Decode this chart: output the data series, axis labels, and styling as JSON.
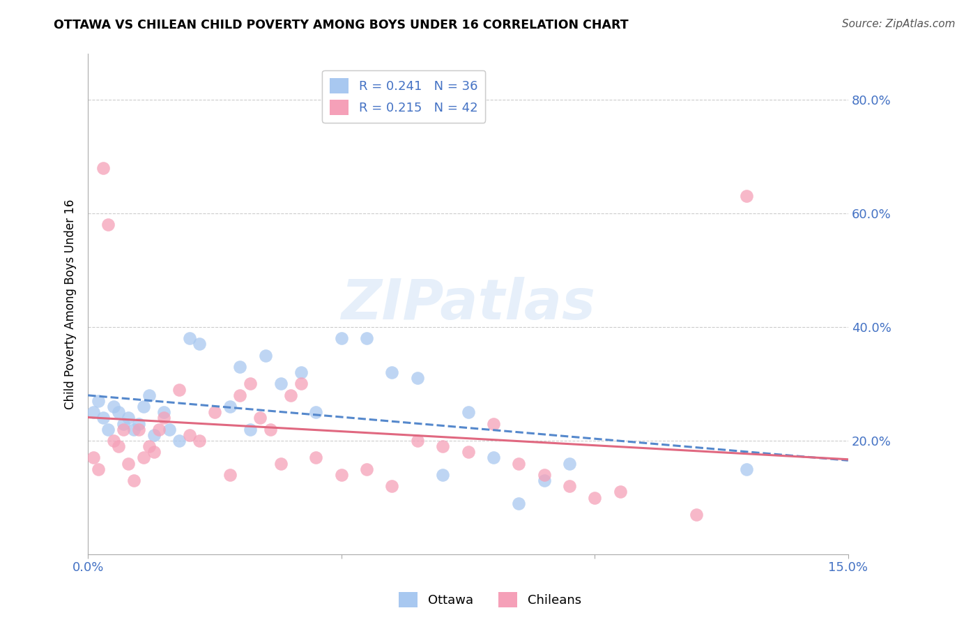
{
  "title": "OTTAWA VS CHILEAN CHILD POVERTY AMONG BOYS UNDER 16 CORRELATION CHART",
  "source": "Source: ZipAtlas.com",
  "ylabel": "Child Poverty Among Boys Under 16",
  "ytick_labels": [
    "20.0%",
    "40.0%",
    "60.0%",
    "80.0%"
  ],
  "ytick_vals": [
    0.2,
    0.4,
    0.6,
    0.8
  ],
  "xtick_vals": [
    0.0,
    0.05,
    0.1,
    0.15
  ],
  "xtick_labels_show": [
    "0.0%",
    "",
    "",
    "15.0%"
  ],
  "xlim": [
    0.0,
    0.15
  ],
  "ylim": [
    0.0,
    0.88
  ],
  "legend_label_R1": "R = 0.241",
  "legend_label_N1": "N = 36",
  "legend_label_R2": "R = 0.215",
  "legend_label_N2": "N = 42",
  "legend_label_ottawa": "Ottawa",
  "legend_label_chileans": "Chileans",
  "watermark": "ZIPatlas",
  "ottawa_color": "#a8c8f0",
  "chilean_color": "#f5a0b8",
  "ottawa_line_color": "#5588cc",
  "chilean_line_color": "#e06880",
  "background_color": "#ffffff",
  "grid_color": "#cccccc",
  "ottawa_x": [
    0.001,
    0.002,
    0.003,
    0.004,
    0.005,
    0.006,
    0.007,
    0.008,
    0.009,
    0.01,
    0.011,
    0.012,
    0.013,
    0.015,
    0.016,
    0.018,
    0.02,
    0.022,
    0.028,
    0.03,
    0.032,
    0.035,
    0.038,
    0.042,
    0.045,
    0.05,
    0.055,
    0.06,
    0.065,
    0.07,
    0.075,
    0.08,
    0.085,
    0.09,
    0.095,
    0.13
  ],
  "ottawa_y": [
    0.25,
    0.27,
    0.24,
    0.22,
    0.26,
    0.25,
    0.23,
    0.24,
    0.22,
    0.23,
    0.26,
    0.28,
    0.21,
    0.25,
    0.22,
    0.2,
    0.38,
    0.37,
    0.26,
    0.33,
    0.22,
    0.35,
    0.3,
    0.32,
    0.25,
    0.38,
    0.38,
    0.32,
    0.31,
    0.14,
    0.25,
    0.17,
    0.09,
    0.13,
    0.16,
    0.15
  ],
  "chilean_x": [
    0.001,
    0.002,
    0.003,
    0.004,
    0.005,
    0.006,
    0.007,
    0.008,
    0.009,
    0.01,
    0.011,
    0.012,
    0.013,
    0.014,
    0.015,
    0.018,
    0.02,
    0.022,
    0.025,
    0.028,
    0.03,
    0.032,
    0.034,
    0.036,
    0.038,
    0.04,
    0.042,
    0.045,
    0.05,
    0.055,
    0.06,
    0.065,
    0.07,
    0.075,
    0.08,
    0.085,
    0.09,
    0.095,
    0.1,
    0.105,
    0.12,
    0.13
  ],
  "chilean_y": [
    0.17,
    0.15,
    0.68,
    0.58,
    0.2,
    0.19,
    0.22,
    0.16,
    0.13,
    0.22,
    0.17,
    0.19,
    0.18,
    0.22,
    0.24,
    0.29,
    0.21,
    0.2,
    0.25,
    0.14,
    0.28,
    0.3,
    0.24,
    0.22,
    0.16,
    0.28,
    0.3,
    0.17,
    0.14,
    0.15,
    0.12,
    0.2,
    0.19,
    0.18,
    0.23,
    0.16,
    0.14,
    0.12,
    0.1,
    0.11,
    0.07,
    0.63
  ]
}
